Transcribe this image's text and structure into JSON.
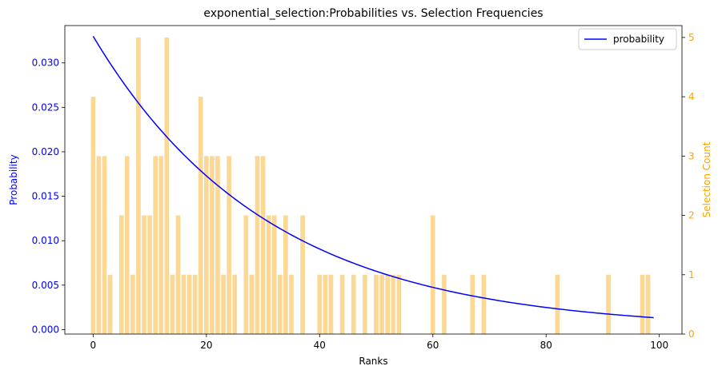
{
  "chart_data": {
    "type": "bar+line",
    "title": "exponential_selection:Probabilities vs. Selection Frequencies",
    "xlabel": "Ranks",
    "ylabel_left": "Probability",
    "ylabel_right": "Selection Count",
    "xlim": [
      -5,
      104
    ],
    "ylim_left": [
      -0.0005,
      0.0342
    ],
    "ylim_right": [
      0,
      5.2
    ],
    "xticks": [
      "0",
      "20",
      "40",
      "60",
      "80",
      "100"
    ],
    "yticks_left": [
      "0.000",
      "0.005",
      "0.010",
      "0.015",
      "0.020",
      "0.025",
      "0.030"
    ],
    "yticks_right": [
      "0",
      "1",
      "2",
      "3",
      "4",
      "5"
    ],
    "legend": {
      "position": "top-right",
      "entries": [
        "probability"
      ]
    },
    "colors": {
      "line": "#0000ff",
      "bars": "#fbd896",
      "left_axis": "#0000ff",
      "right_axis": "#ffa500"
    },
    "series": [
      {
        "name": "probability",
        "kind": "line",
        "decay_rate": 0.0323,
        "values": [
          0.033,
          0.032,
          0.0309,
          0.03,
          0.029,
          0.0281,
          0.0272,
          0.0263,
          0.0255,
          0.0247,
          0.0239,
          0.0231,
          0.0224,
          0.0217,
          0.021,
          0.0203,
          0.0197,
          0.0191,
          0.0185,
          0.0179,
          0.0173,
          0.0168,
          0.0162,
          0.0157,
          0.0152,
          0.0147,
          0.0143,
          0.0138,
          0.0134,
          0.013,
          0.0125,
          0.0121,
          0.0118,
          0.0114,
          0.011,
          0.0107,
          0.0103,
          0.01,
          0.0097,
          0.0094,
          0.0091,
          0.0088,
          0.0085,
          0.0083,
          0.008,
          0.0077,
          0.0075,
          0.0073,
          0.007,
          0.0068,
          0.0066,
          0.0064,
          0.0062,
          0.006,
          0.0058,
          0.0056,
          0.0054,
          0.0052,
          0.0051,
          0.0049,
          0.0048,
          0.0046,
          0.0045,
          0.0043,
          0.0042,
          0.0041,
          0.0039,
          0.0038,
          0.0037,
          0.0036,
          0.0034,
          0.0033,
          0.0032,
          0.0031,
          0.003,
          0.0029,
          0.0028,
          0.0027,
          0.0026,
          0.0026,
          0.0025,
          0.0024,
          0.0023,
          0.0022,
          0.0022,
          0.0021,
          0.002,
          0.002,
          0.0019,
          0.0018,
          0.0018,
          0.0017,
          0.0017,
          0.0016,
          0.0016,
          0.0015,
          0.0015,
          0.0014,
          0.0014,
          0.0013
        ]
      },
      {
        "name": "",
        "kind": "bar",
        "x": [
          0,
          1,
          2,
          3,
          5,
          6,
          7,
          8,
          9,
          10,
          11,
          12,
          13,
          14,
          15,
          16,
          17,
          18,
          19,
          20,
          21,
          22,
          23,
          24,
          25,
          27,
          28,
          29,
          30,
          31,
          32,
          33,
          34,
          35,
          37,
          40,
          41,
          42,
          44,
          46,
          48,
          50,
          51,
          52,
          53,
          54,
          60,
          62,
          67,
          69,
          82,
          91,
          97,
          98
        ],
        "values": [
          4,
          3,
          3,
          1,
          2,
          3,
          1,
          5,
          2,
          2,
          3,
          3,
          5,
          1,
          2,
          1,
          1,
          1,
          4,
          3,
          3,
          3,
          1,
          3,
          1,
          2,
          1,
          3,
          3,
          2,
          2,
          1,
          2,
          1,
          2,
          1,
          1,
          1,
          1,
          1,
          1,
          1,
          1,
          1,
          1,
          1,
          2,
          1,
          1,
          1,
          1,
          1,
          1,
          1
        ]
      }
    ]
  }
}
